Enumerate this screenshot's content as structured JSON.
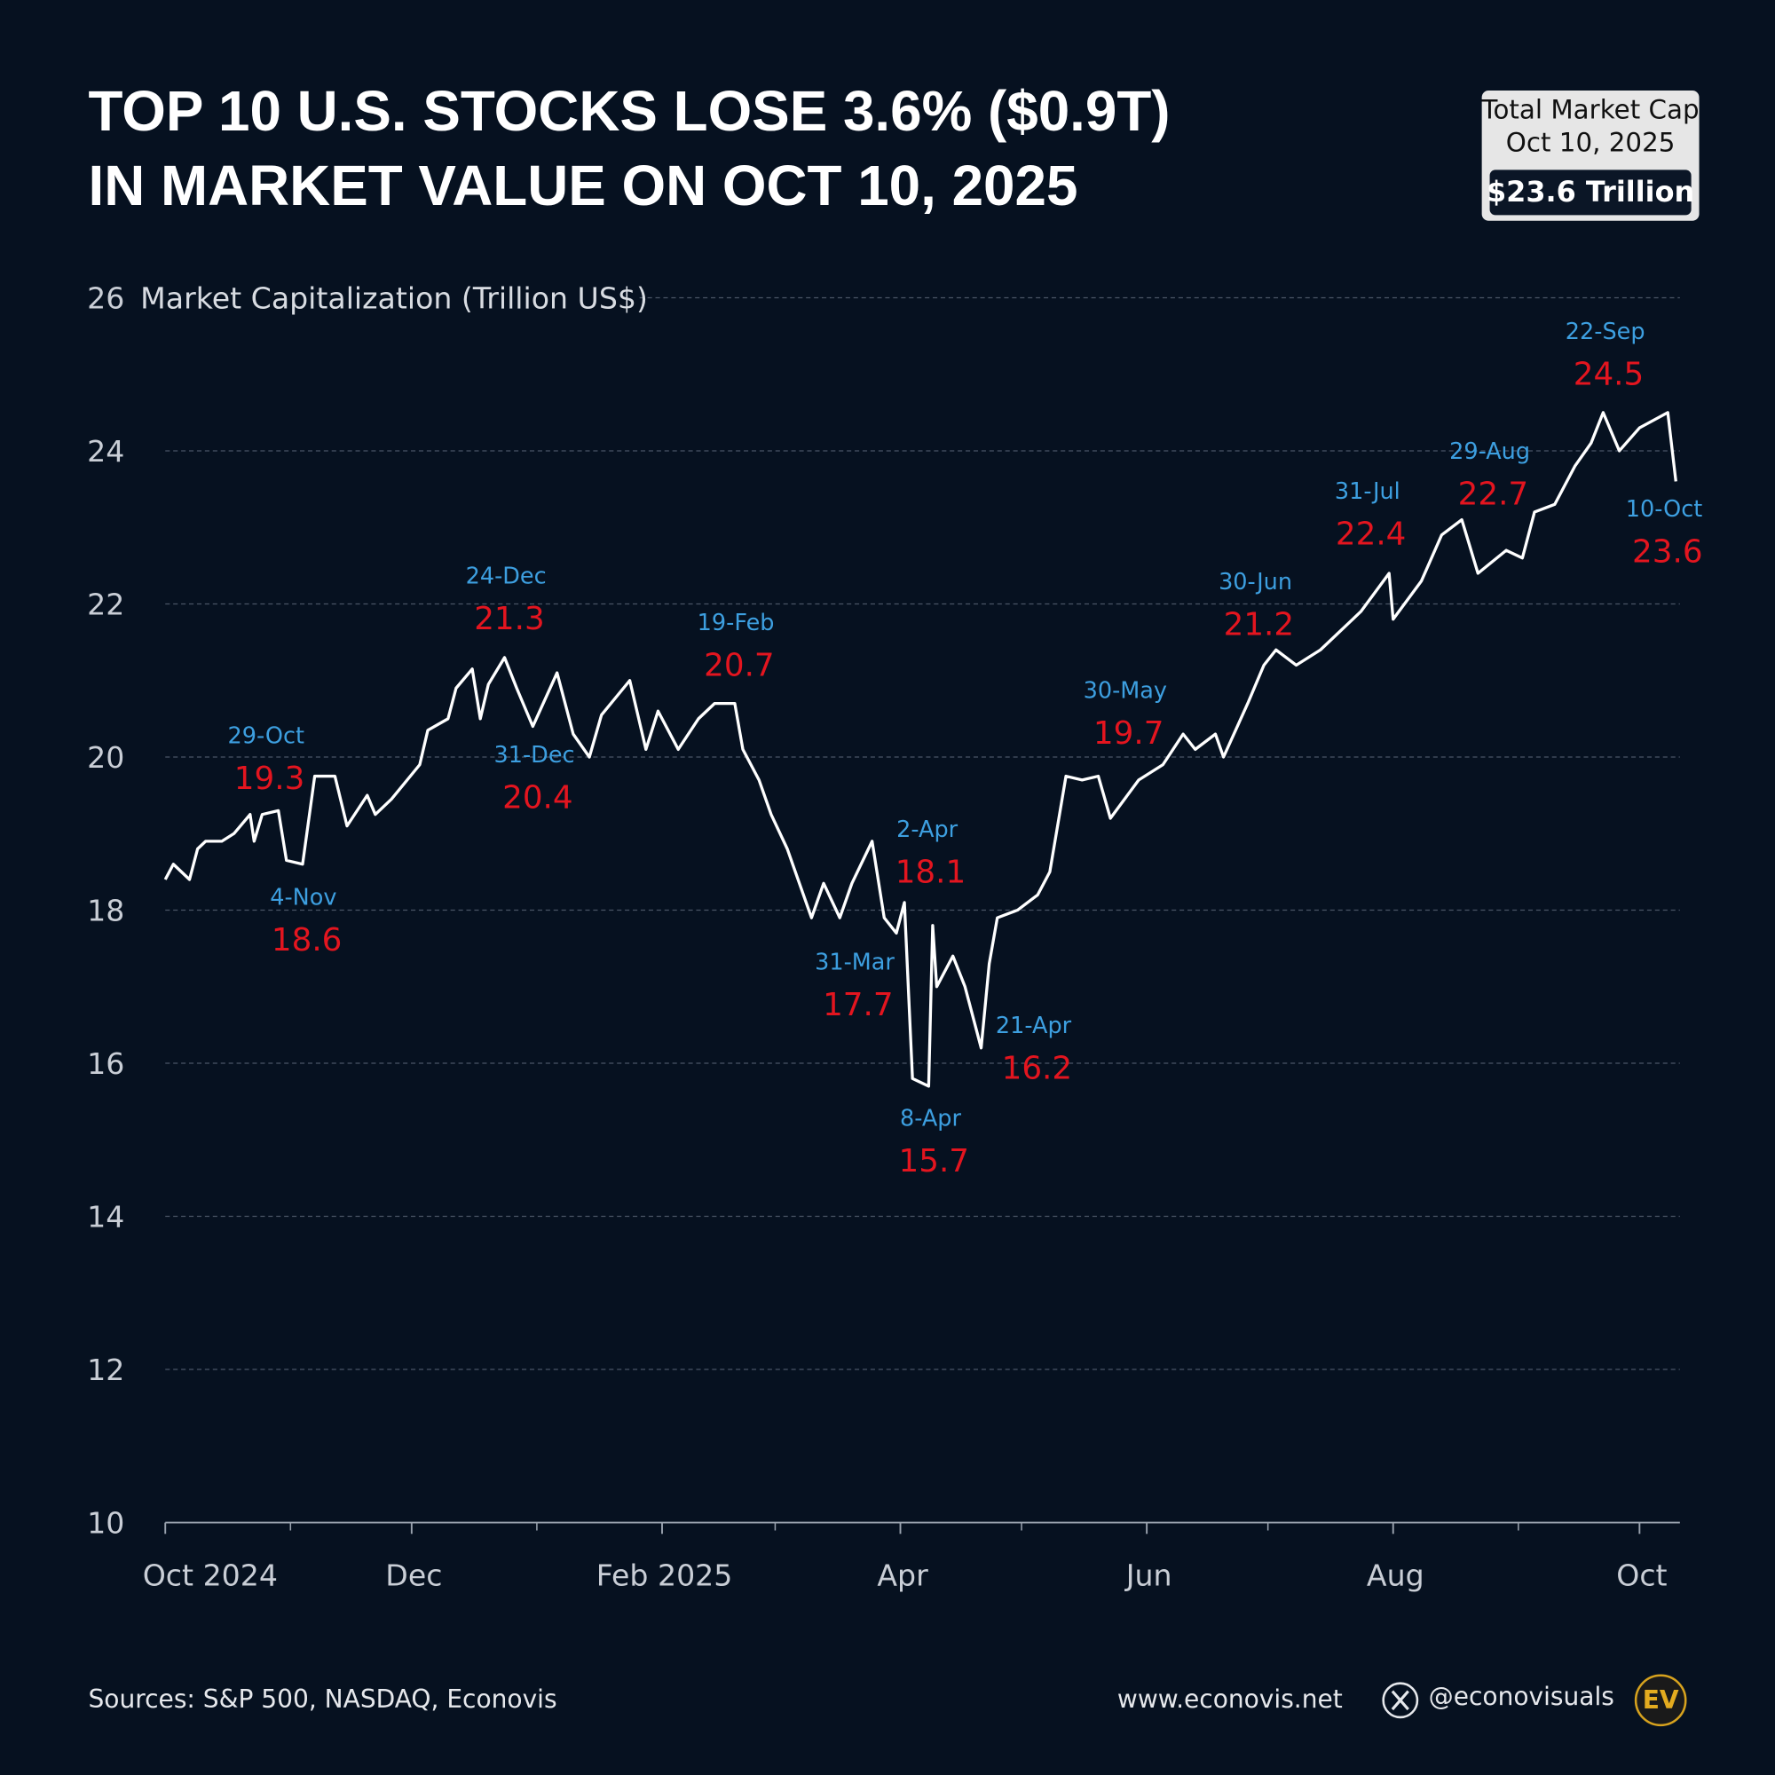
{
  "chart_data": {
    "type": "line",
    "title": [
      "TOP 10 U.S. STOCKS LOSE 3.6% ($0.9T)",
      "IN MARKET VALUE ON OCT 10, 2025"
    ],
    "y_label": "Market Capitalization (Trillion US$)",
    "info_box": {
      "title": "Total Market Cap",
      "date": "Oct 10, 2025",
      "value": "$23.6 Trillion"
    },
    "x": [
      "2024-10-01",
      "2024-10-03",
      "2024-10-07",
      "2024-10-09",
      "2024-10-11",
      "2024-10-15",
      "2024-10-18",
      "2024-10-22",
      "2024-10-23",
      "2024-10-25",
      "2024-10-29",
      "2024-10-31",
      "2024-11-04",
      "2024-11-07",
      "2024-11-12",
      "2024-11-15",
      "2024-11-20",
      "2024-11-22",
      "2024-11-26",
      "2024-12-03",
      "2024-12-05",
      "2024-12-10",
      "2024-12-12",
      "2024-12-16",
      "2024-12-18",
      "2024-12-20",
      "2024-12-24",
      "2024-12-27",
      "2024-12-31",
      "2025-01-06",
      "2025-01-10",
      "2025-01-14",
      "2025-01-17",
      "2025-01-24",
      "2025-01-28",
      "2025-01-31",
      "2025-02-05",
      "2025-02-10",
      "2025-02-14",
      "2025-02-19",
      "2025-02-21",
      "2025-02-25",
      "2025-02-28",
      "2025-03-04",
      "2025-03-10",
      "2025-03-13",
      "2025-03-17",
      "2025-03-20",
      "2025-03-25",
      "2025-03-28",
      "2025-03-31",
      "2025-04-02",
      "2025-04-04",
      "2025-04-08",
      "2025-04-09",
      "2025-04-10",
      "2025-04-14",
      "2025-04-17",
      "2025-04-21",
      "2025-04-23",
      "2025-04-25",
      "2025-04-30",
      "2025-05-05",
      "2025-05-08",
      "2025-05-12",
      "2025-05-16",
      "2025-05-20",
      "2025-05-23",
      "2025-05-30",
      "2025-06-05",
      "2025-06-10",
      "2025-06-13",
      "2025-06-18",
      "2025-06-20",
      "2025-06-26",
      "2025-06-30",
      "2025-07-03",
      "2025-07-08",
      "2025-07-14",
      "2025-07-18",
      "2025-07-24",
      "2025-07-31",
      "2025-08-01",
      "2025-08-08",
      "2025-08-13",
      "2025-08-18",
      "2025-08-22",
      "2025-08-29",
      "2025-09-02",
      "2025-09-05",
      "2025-09-10",
      "2025-09-15",
      "2025-09-19",
      "2025-09-22",
      "2025-09-26",
      "2025-10-01",
      "2025-10-08",
      "2025-10-10"
    ],
    "series": [
      {
        "color": "#ffffff",
        "values": [
          18.4,
          18.6,
          18.4,
          18.8,
          18.9,
          18.9,
          19.0,
          19.25,
          18.9,
          19.25,
          19.3,
          18.65,
          18.6,
          19.75,
          19.75,
          19.1,
          19.5,
          19.25,
          19.45,
          19.9,
          20.35,
          20.5,
          20.9,
          21.15,
          20.5,
          20.95,
          21.3,
          20.9,
          20.4,
          21.1,
          20.3,
          20.0,
          20.55,
          21.0,
          20.1,
          20.6,
          20.1,
          20.5,
          20.7,
          20.7,
          20.1,
          19.7,
          19.25,
          18.8,
          17.9,
          18.35,
          17.9,
          18.35,
          18.9,
          17.9,
          17.7,
          18.1,
          15.8,
          15.7,
          17.8,
          17.0,
          17.4,
          17.0,
          16.2,
          17.3,
          17.9,
          18.0,
          18.2,
          18.5,
          19.75,
          19.7,
          19.75,
          19.2,
          19.7,
          19.9,
          20.3,
          20.1,
          20.3,
          20.0,
          20.7,
          21.2,
          21.4,
          21.2,
          21.4,
          21.6,
          21.9,
          22.4,
          21.8,
          22.3,
          22.9,
          23.1,
          22.4,
          22.7,
          22.6,
          23.2,
          23.3,
          23.8,
          24.1,
          24.5,
          24.0,
          24.3,
          24.5,
          23.6
        ]
      }
    ],
    "annotations": [
      {
        "x": "2024-10-29",
        "label": "29-Oct",
        "value": 19.3
      },
      {
        "x": "2024-11-04",
        "label": "4-Nov",
        "value": 18.6
      },
      {
        "x": "2024-12-24",
        "label": "24-Dec",
        "value": 21.3
      },
      {
        "x": "2024-12-31",
        "label": "31-Dec",
        "value": 20.4
      },
      {
        "x": "2025-02-19",
        "label": "19-Feb",
        "value": 20.7
      },
      {
        "x": "2025-03-31",
        "label": "31-Mar",
        "value": 17.7
      },
      {
        "x": "2025-04-02",
        "label": "2-Apr",
        "value": 18.1
      },
      {
        "x": "2025-04-08",
        "label": "8-Apr",
        "value": 15.7
      },
      {
        "x": "2025-04-21",
        "label": "21-Apr",
        "value": 16.2
      },
      {
        "x": "2025-05-30",
        "label": "30-May",
        "value": 19.7
      },
      {
        "x": "2025-06-30",
        "label": "30-Jun",
        "value": 21.2
      },
      {
        "x": "2025-07-31",
        "label": "31-Jul",
        "value": 22.4
      },
      {
        "x": "2025-08-29",
        "label": "29-Aug",
        "value": 22.7
      },
      {
        "x": "2025-09-22",
        "label": "22-Sep",
        "value": 24.5
      },
      {
        "x": "2025-10-10",
        "label": "10-Oct",
        "value": 23.6
      }
    ],
    "xlim": [
      "2024-10-01",
      "2025-10-11"
    ],
    "xticks": [
      {
        "value": "2024-10-01",
        "label": "Oct 2024"
      },
      {
        "value": "2024-12-01",
        "label": "Dec"
      },
      {
        "value": "2025-02-01",
        "label": "Feb 2025"
      },
      {
        "value": "2025-04-01",
        "label": "Apr"
      },
      {
        "value": "2025-06-01",
        "label": "Jun"
      },
      {
        "value": "2025-08-01",
        "label": "Aug"
      },
      {
        "value": "2025-10-01",
        "label": "Oct"
      }
    ],
    "xticks_minor": [
      "2024-11-01",
      "2025-01-01",
      "2025-03-01",
      "2025-05-01",
      "2025-07-01",
      "2025-09-01"
    ],
    "ylim": [
      10,
      26
    ],
    "yticks": [
      10,
      12,
      14,
      16,
      18,
      20,
      22,
      24,
      26
    ],
    "grid": true,
    "source": "Sources: S&P 500, NASDAQ, Econovis",
    "website": "www.econovis.net",
    "handle": "@econovisuals",
    "logo": "EV"
  }
}
